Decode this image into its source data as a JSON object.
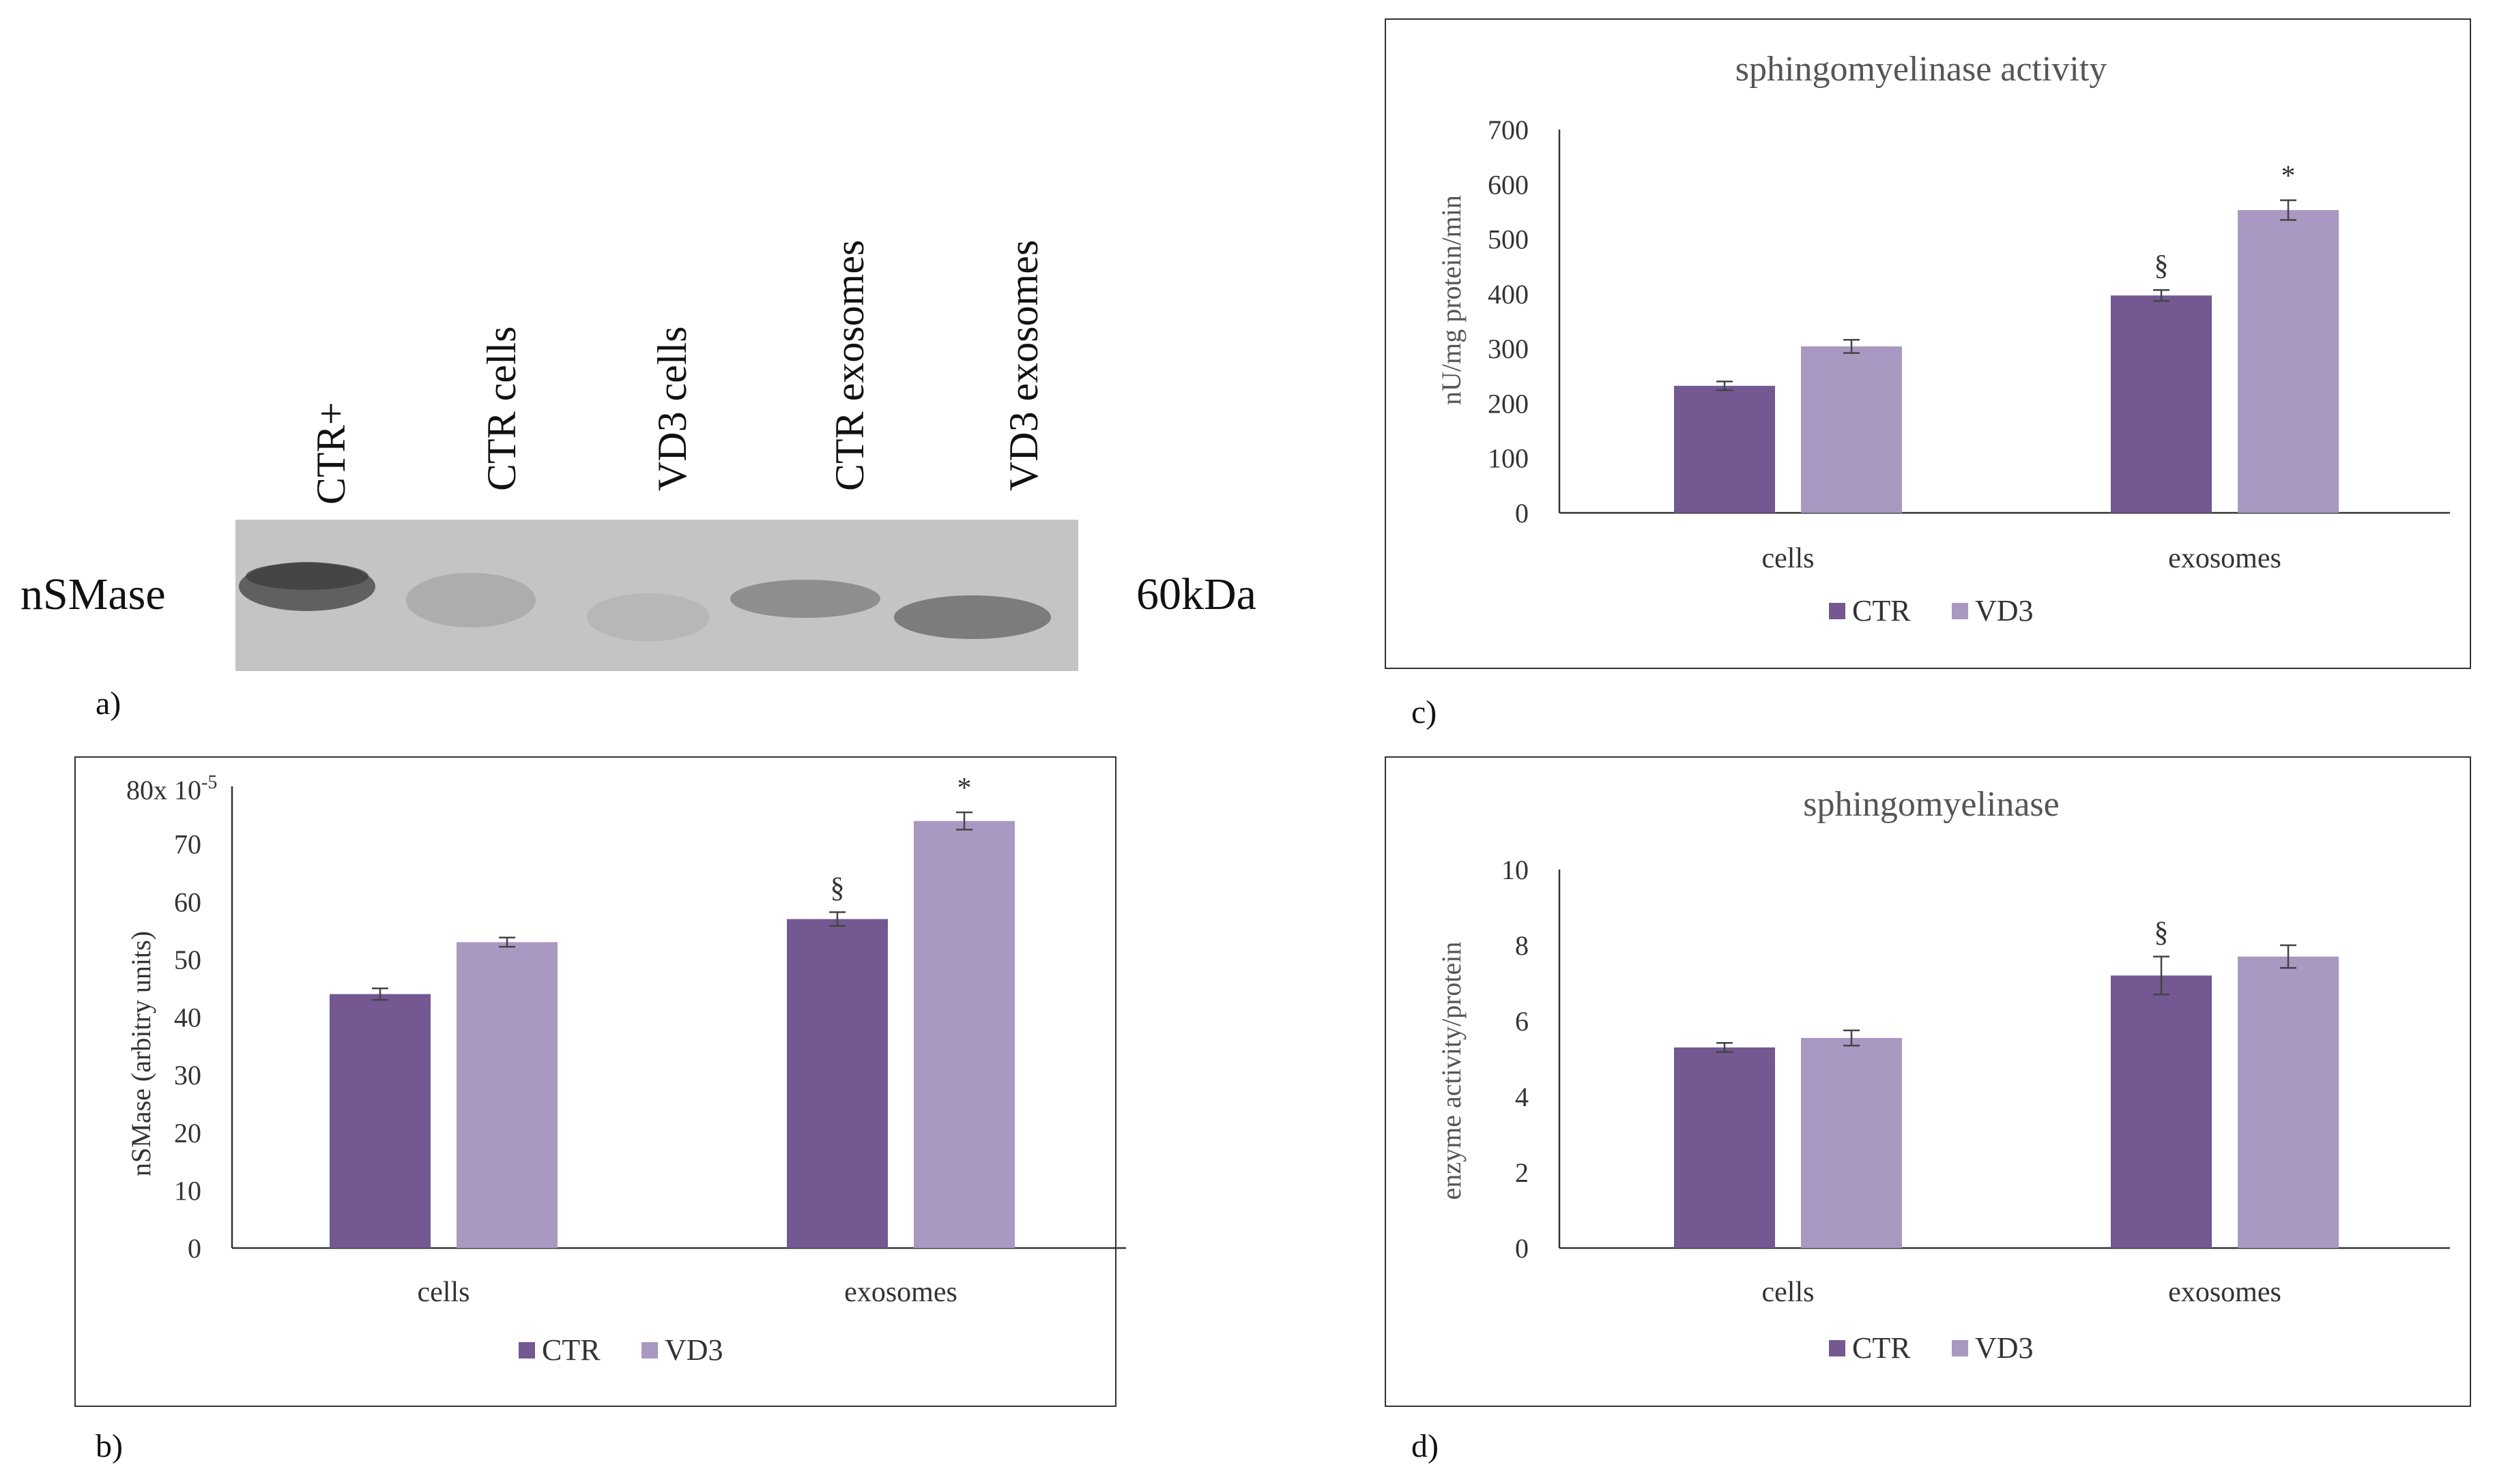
{
  "colors": {
    "ctr": "#735891",
    "vd3": "#a898c2",
    "blot_bg": "#c4c4c4",
    "band_dark": "#4a4a4a"
  },
  "blot": {
    "panel_label": "a)",
    "protein_label": "nSMase",
    "size_label": "60kDa",
    "lanes": [
      "CTR+",
      "CTR cells",
      "VD3 cells",
      "CTR  exosomes",
      "VD3 exosomes"
    ]
  },
  "chart_data": [
    {
      "id": "b",
      "panel_label": "b)",
      "type": "bar",
      "title": "",
      "ylabel": "nSMase (arbitry units)",
      "ylabel_prefix": "80x 10",
      "ylabel_exp": "-5",
      "ylim": [
        0,
        80
      ],
      "yticks": [
        0,
        10,
        20,
        30,
        40,
        50,
        60,
        70
      ],
      "categories": [
        "cells",
        "exosomes"
      ],
      "series": [
        {
          "name": "CTR",
          "values": [
            44,
            57
          ],
          "errors": [
            1,
            1.2
          ],
          "annotations": [
            "",
            "§"
          ]
        },
        {
          "name": "VD3",
          "values": [
            53,
            74
          ],
          "errors": [
            0.8,
            1.5
          ],
          "annotations": [
            "",
            "*"
          ]
        }
      ],
      "legend": "bottom"
    },
    {
      "id": "c",
      "panel_label": "c)",
      "type": "bar",
      "title": "sphingomyelinase  activity",
      "ylabel": "nU/mg  protein/min",
      "ylim": [
        0,
        700
      ],
      "yticks": [
        0,
        100,
        200,
        300,
        400,
        500,
        600,
        700
      ],
      "categories": [
        "cells",
        "exosomes"
      ],
      "series": [
        {
          "name": "CTR",
          "values": [
            232,
            397
          ],
          "errors": [
            8,
            10
          ],
          "annotations": [
            "",
            "§"
          ]
        },
        {
          "name": "VD3",
          "values": [
            304,
            553
          ],
          "errors": [
            12,
            18
          ],
          "annotations": [
            "",
            "*"
          ]
        }
      ],
      "legend": "bottom"
    },
    {
      "id": "d",
      "panel_label": "d)",
      "type": "bar",
      "title": "sphingomyelinase",
      "ylabel": "enzyme  activity/protein",
      "ylim": [
        0,
        10
      ],
      "yticks": [
        0,
        2,
        4,
        6,
        8,
        10
      ],
      "categories": [
        "cells",
        "exosomes"
      ],
      "series": [
        {
          "name": "CTR",
          "values": [
            5.3,
            7.2
          ],
          "errors": [
            0.12,
            0.5
          ],
          "annotations": [
            "",
            "§"
          ]
        },
        {
          "name": "VD3",
          "values": [
            5.55,
            7.7
          ],
          "errors": [
            0.2,
            0.3
          ],
          "annotations": [
            "",
            ""
          ]
        }
      ],
      "legend": "bottom"
    }
  ]
}
